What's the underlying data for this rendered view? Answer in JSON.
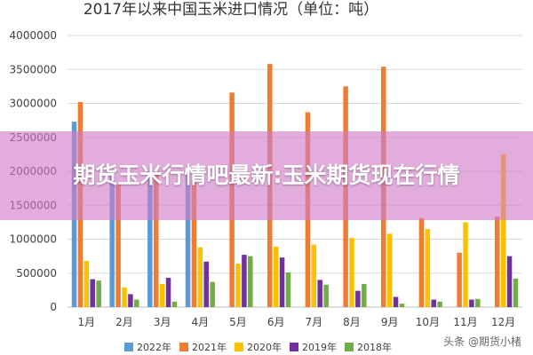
{
  "chart_data": {
    "type": "bar",
    "title": "2017年以来中国玉米进口情况（单位：吨）",
    "xlabel": "",
    "ylabel": "",
    "ylim": [
      0,
      4000000
    ],
    "yticks": [
      0,
      500000,
      1000000,
      1500000,
      2000000,
      2500000,
      3000000,
      3500000,
      4000000
    ],
    "ytick_labels": [
      "0",
      "500000",
      "1000000",
      "1500000",
      "2000000",
      "2500000",
      "3000000",
      "3500000",
      "4000000"
    ],
    "grid": true,
    "legend_position": "bottom",
    "categories": [
      "1月",
      "2月",
      "3月",
      "4月",
      "5月",
      "6月",
      "7月",
      "8月",
      "9月",
      "10月",
      "11月",
      "12月"
    ],
    "series": [
      {
        "name": "2022年",
        "color": "#5b9bd5",
        "values": [
          2730000,
          1930000,
          2000000,
          1990000,
          null,
          null,
          null,
          null,
          null,
          null,
          null,
          null
        ]
      },
      {
        "name": "2021年",
        "color": "#ed7d31",
        "values": [
          3020000,
          1800000,
          1950000,
          1860000,
          3160000,
          3580000,
          2870000,
          3250000,
          3540000,
          1310000,
          800000,
          1330000
        ]
      },
      {
        "name": "2020年",
        "color": "#ffc000",
        "values": [
          680000,
          290000,
          340000,
          880000,
          640000,
          890000,
          920000,
          1020000,
          1080000,
          1150000,
          1250000,
          2250000
        ]
      },
      {
        "name": "2019年",
        "color": "#7030a0",
        "values": [
          410000,
          190000,
          430000,
          670000,
          770000,
          730000,
          400000,
          240000,
          150000,
          110000,
          110000,
          750000
        ]
      },
      {
        "name": "2018年",
        "color": "#70ad47",
        "values": [
          390000,
          110000,
          80000,
          370000,
          750000,
          510000,
          330000,
          340000,
          50000,
          80000,
          120000,
          420000
        ]
      }
    ]
  },
  "overlay": {
    "banner_text": "期货玉米行情吧最新:玉米期货现在行情",
    "watermark": "头条 @期货小楮"
  }
}
